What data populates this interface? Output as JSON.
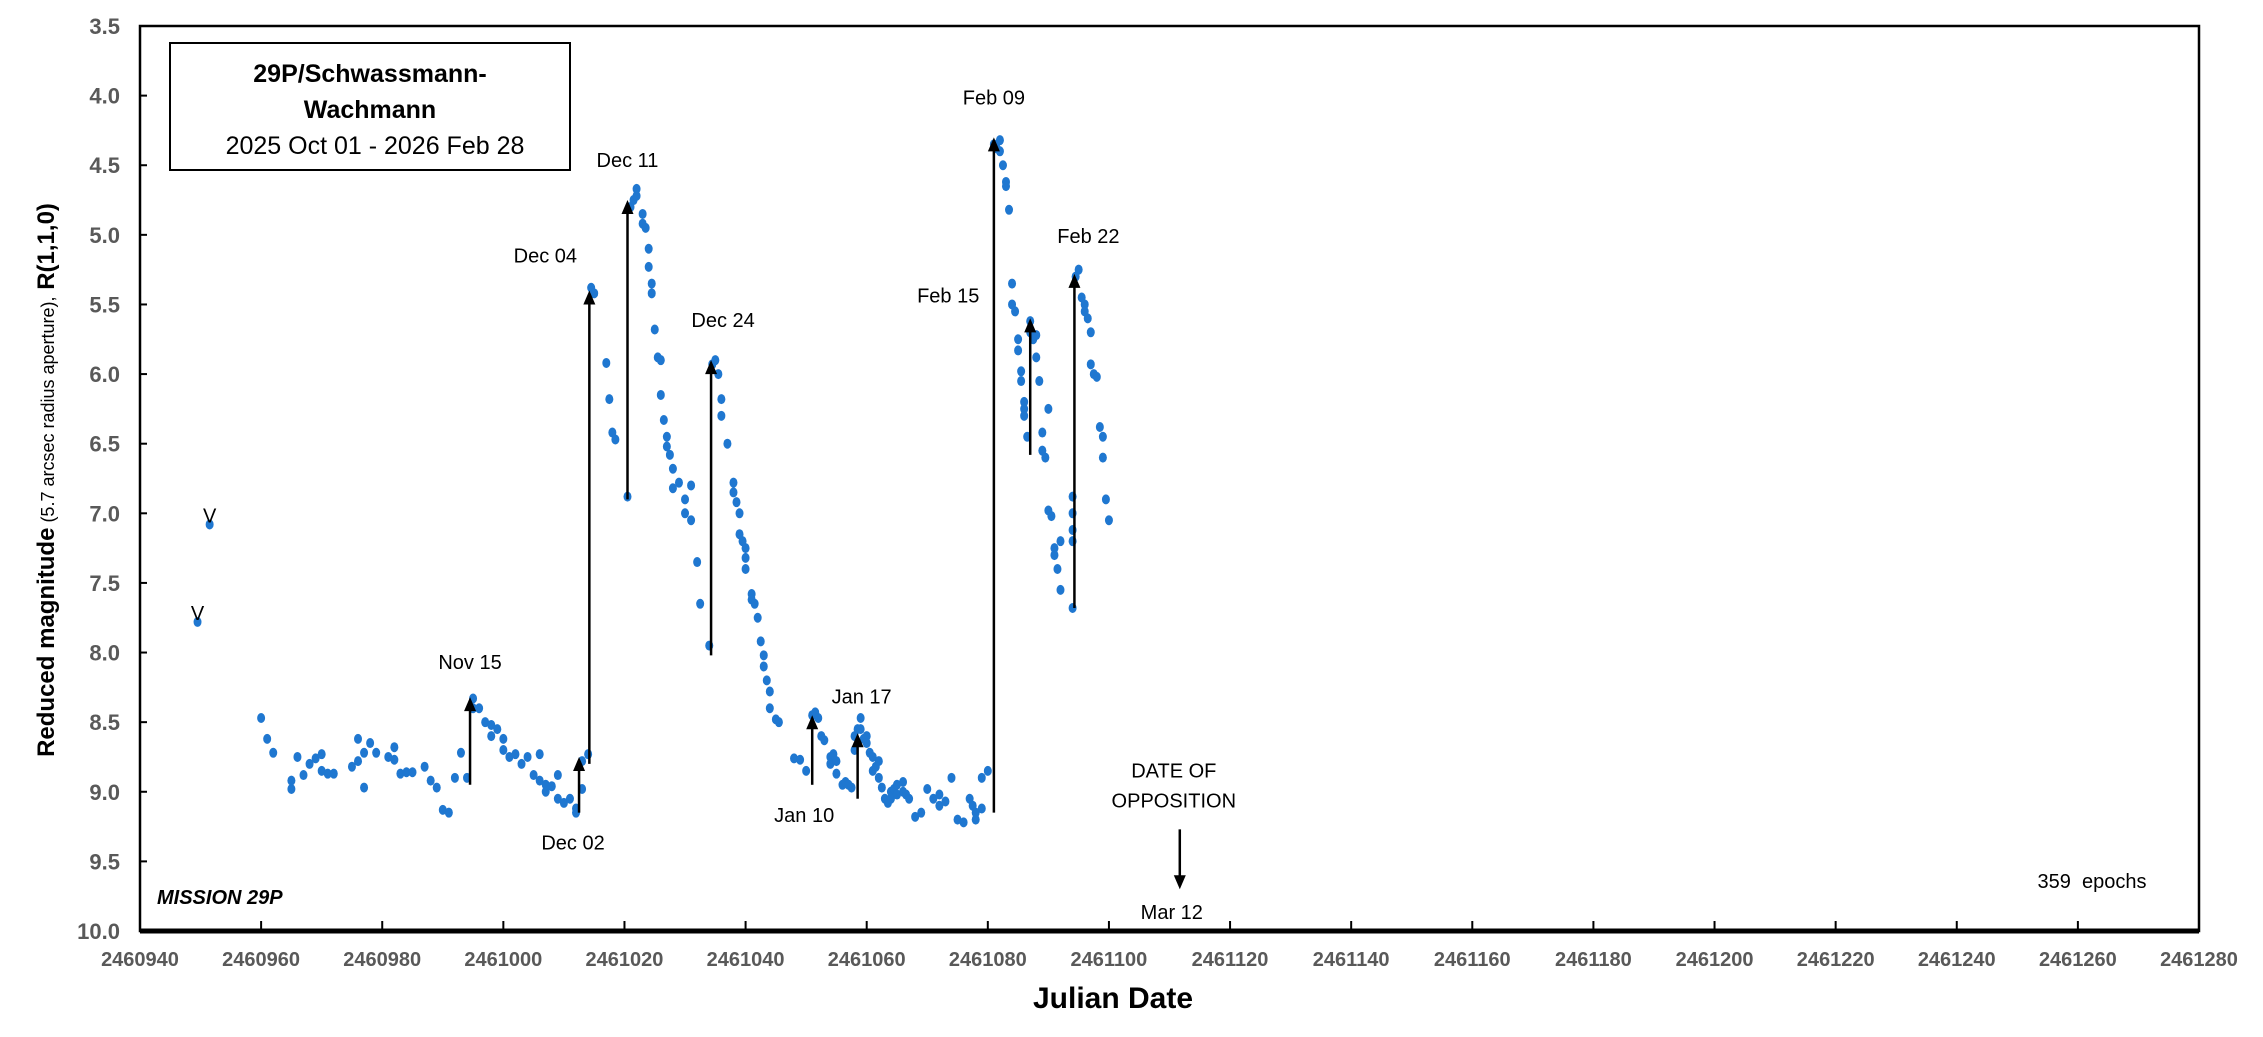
{
  "chart_data": {
    "type": "scatter",
    "title_line1": "29P/Schwassmann-",
    "title_line2": "Wachmann",
    "subtitle": "2025 Oct 01 - 2026 Feb 28",
    "xlabel": "Julian Date",
    "ylabel_bold": "Reduced magnitude",
    "ylabel_small": " (5.7 arcsec radius aperture),",
    "ylabel_bold2": "  R(1,1,0)",
    "xlim": [
      2460940,
      2461280
    ],
    "ylim": [
      3.5,
      10.0
    ],
    "y_inverted": true,
    "xticks": [
      "2460940",
      "2460960",
      "2460980",
      "2461000",
      "2461020",
      "2461040",
      "2461060",
      "2461080",
      "2461100",
      "2461120",
      "2461140",
      "2461160",
      "2461180",
      "2461200",
      "2461220",
      "2461240",
      "2461260",
      "2461280"
    ],
    "yticks": [
      "3.5",
      "4.0",
      "4.5",
      "5.0",
      "5.5",
      "6.0",
      "6.5",
      "7.0",
      "7.5",
      "8.0",
      "8.5",
      "9.0",
      "9.5",
      "10.0"
    ],
    "point_color": "#1f77d0",
    "upper_limits": {
      "marker": "V",
      "points": [
        [
          2460949.5,
          7.78
        ],
        [
          2460951.5,
          7.08
        ]
      ]
    },
    "points": [
      [
        2460960,
        8.47
      ],
      [
        2460961,
        8.62
      ],
      [
        2460962,
        8.72
      ],
      [
        2460965,
        8.98
      ],
      [
        2460965,
        8.92
      ],
      [
        2460966,
        8.75
      ],
      [
        2460967,
        8.88
      ],
      [
        2460968,
        8.8
      ],
      [
        2460969,
        8.76
      ],
      [
        2460970,
        8.73
      ],
      [
        2460970,
        8.85
      ],
      [
        2460971,
        8.87
      ],
      [
        2460972,
        8.87
      ],
      [
        2460975,
        8.82
      ],
      [
        2460976,
        8.78
      ],
      [
        2460976,
        8.62
      ],
      [
        2460977,
        8.97
      ],
      [
        2460977,
        8.72
      ],
      [
        2460978,
        8.65
      ],
      [
        2460979,
        8.72
      ],
      [
        2460981,
        8.75
      ],
      [
        2460982,
        8.77
      ],
      [
        2460982,
        8.68
      ],
      [
        2460983,
        8.87
      ],
      [
        2460984,
        8.86
      ],
      [
        2460985,
        8.86
      ],
      [
        2460987,
        8.82
      ],
      [
        2460988,
        8.92
      ],
      [
        2460989,
        8.97
      ],
      [
        2460990,
        9.13
      ],
      [
        2460991,
        9.15
      ],
      [
        2460992,
        8.9
      ],
      [
        2460993,
        8.72
      ],
      [
        2460994,
        8.9
      ],
      [
        2460995,
        8.33
      ],
      [
        2460995,
        8.4
      ],
      [
        2460996,
        8.4
      ],
      [
        2460997,
        8.5
      ],
      [
        2460998,
        8.6
      ],
      [
        2460998,
        8.52
      ],
      [
        2460999,
        8.55
      ],
      [
        2461000,
        8.62
      ],
      [
        2461000,
        8.7
      ],
      [
        2461001,
        8.75
      ],
      [
        2461002,
        8.73
      ],
      [
        2461003,
        8.8
      ],
      [
        2461004,
        8.75
      ],
      [
        2461005,
        8.88
      ],
      [
        2461006,
        8.73
      ],
      [
        2461006,
        8.92
      ],
      [
        2461007,
        9.0
      ],
      [
        2461007,
        8.95
      ],
      [
        2461008,
        8.96
      ],
      [
        2461009,
        9.05
      ],
      [
        2461009,
        8.88
      ],
      [
        2461010,
        9.08
      ],
      [
        2461011,
        9.05
      ],
      [
        2461012,
        9.12
      ],
      [
        2461012,
        9.15
      ],
      [
        2461013,
        8.98
      ],
      [
        2461013,
        8.78
      ],
      [
        2461014,
        8.73
      ],
      [
        2461014.5,
        5.38
      ],
      [
        2461015,
        5.42
      ],
      [
        2461017,
        5.92
      ],
      [
        2461017.5,
        6.18
      ],
      [
        2461018,
        6.42
      ],
      [
        2461018.5,
        6.47
      ],
      [
        2461020.5,
        6.88
      ],
      [
        2461021,
        4.8
      ],
      [
        2461021.5,
        4.75
      ],
      [
        2461022,
        4.67
      ],
      [
        2461022,
        4.72
      ],
      [
        2461023,
        4.85
      ],
      [
        2461023,
        4.92
      ],
      [
        2461023.5,
        4.95
      ],
      [
        2461024,
        5.1
      ],
      [
        2461024,
        5.23
      ],
      [
        2461024.5,
        5.35
      ],
      [
        2461024.5,
        5.42
      ],
      [
        2461025,
        5.68
      ],
      [
        2461025.5,
        5.88
      ],
      [
        2461026,
        5.9
      ],
      [
        2461026,
        6.15
      ],
      [
        2461026.5,
        6.33
      ],
      [
        2461027,
        6.45
      ],
      [
        2461027,
        6.52
      ],
      [
        2461027.5,
        6.58
      ],
      [
        2461028,
        6.68
      ],
      [
        2461028,
        6.82
      ],
      [
        2461029,
        6.78
      ],
      [
        2461030,
        6.9
      ],
      [
        2461030,
        7.0
      ],
      [
        2461031,
        7.05
      ],
      [
        2461031,
        6.8
      ],
      [
        2461032,
        7.35
      ],
      [
        2461032.5,
        7.65
      ],
      [
        2461034,
        7.95
      ],
      [
        2461034.5,
        5.93
      ],
      [
        2461035,
        5.9
      ],
      [
        2461035.5,
        6.0
      ],
      [
        2461036,
        6.18
      ],
      [
        2461036,
        6.3
      ],
      [
        2461037,
        6.5
      ],
      [
        2461038,
        6.78
      ],
      [
        2461038,
        6.85
      ],
      [
        2461038.5,
        6.92
      ],
      [
        2461039,
        7.0
      ],
      [
        2461039,
        7.15
      ],
      [
        2461039.5,
        7.2
      ],
      [
        2461040,
        7.25
      ],
      [
        2461040,
        7.32
      ],
      [
        2461040,
        7.4
      ],
      [
        2461041,
        7.58
      ],
      [
        2461041,
        7.62
      ],
      [
        2461041.5,
        7.65
      ],
      [
        2461042,
        7.75
      ],
      [
        2461042.5,
        7.92
      ],
      [
        2461043,
        8.02
      ],
      [
        2461043,
        8.1
      ],
      [
        2461043.5,
        8.2
      ],
      [
        2461044,
        8.28
      ],
      [
        2461044,
        8.4
      ],
      [
        2461045,
        8.48
      ],
      [
        2461045.5,
        8.5
      ],
      [
        2461048,
        8.76
      ],
      [
        2461049,
        8.77
      ],
      [
        2461050,
        8.85
      ],
      [
        2461051,
        8.45
      ],
      [
        2461051.5,
        8.43
      ],
      [
        2461052,
        8.47
      ],
      [
        2461052.5,
        8.6
      ],
      [
        2461053,
        8.63
      ],
      [
        2461054,
        8.75
      ],
      [
        2461054,
        8.8
      ],
      [
        2461054.5,
        8.73
      ],
      [
        2461055,
        8.78
      ],
      [
        2461055,
        8.87
      ],
      [
        2461056,
        8.95
      ],
      [
        2461056.5,
        8.93
      ],
      [
        2461057,
        8.95
      ],
      [
        2461057.5,
        8.97
      ],
      [
        2461058,
        8.7
      ],
      [
        2461058,
        8.6
      ],
      [
        2461058.5,
        8.55
      ],
      [
        2461059,
        8.47
      ],
      [
        2461059,
        8.55
      ],
      [
        2461059.5,
        8.62
      ],
      [
        2461060,
        8.6
      ],
      [
        2461060,
        8.65
      ],
      [
        2461060.5,
        8.72
      ],
      [
        2461061,
        8.75
      ],
      [
        2461061,
        8.85
      ],
      [
        2461061.5,
        8.82
      ],
      [
        2461062,
        8.9
      ],
      [
        2461062,
        8.78
      ],
      [
        2461062.5,
        8.97
      ],
      [
        2461063,
        9.05
      ],
      [
        2461063.5,
        9.08
      ],
      [
        2461064,
        9.0
      ],
      [
        2461064,
        9.05
      ],
      [
        2461064.5,
        8.98
      ],
      [
        2461065,
        9.02
      ],
      [
        2461065,
        8.95
      ],
      [
        2461066,
        8.93
      ],
      [
        2461066,
        9.0
      ],
      [
        2461066.5,
        9.02
      ],
      [
        2461067,
        9.05
      ],
      [
        2461068,
        9.18
      ],
      [
        2461069,
        9.15
      ],
      [
        2461070,
        8.98
      ],
      [
        2461071,
        9.05
      ],
      [
        2461072,
        9.1
      ],
      [
        2461072,
        9.02
      ],
      [
        2461073,
        9.07
      ],
      [
        2461074,
        8.9
      ],
      [
        2461075,
        9.2
      ],
      [
        2461076,
        9.22
      ],
      [
        2461077,
        9.05
      ],
      [
        2461077.5,
        9.1
      ],
      [
        2461078,
        9.15
      ],
      [
        2461078,
        9.2
      ],
      [
        2461079,
        8.9
      ],
      [
        2461079,
        9.12
      ],
      [
        2461080,
        8.85
      ],
      [
        2461081,
        4.35
      ],
      [
        2461081.5,
        4.38
      ],
      [
        2461082,
        4.32
      ],
      [
        2461082,
        4.4
      ],
      [
        2461082.5,
        4.5
      ],
      [
        2461083,
        4.62
      ],
      [
        2461083,
        4.65
      ],
      [
        2461083.5,
        4.82
      ],
      [
        2461084,
        5.35
      ],
      [
        2461084,
        5.5
      ],
      [
        2461084.5,
        5.55
      ],
      [
        2461085,
        5.75
      ],
      [
        2461085,
        5.83
      ],
      [
        2461085.5,
        5.98
      ],
      [
        2461085.5,
        6.05
      ],
      [
        2461086,
        6.2
      ],
      [
        2461086,
        6.25
      ],
      [
        2461086,
        6.3
      ],
      [
        2461086.5,
        6.45
      ],
      [
        2461087,
        5.62
      ],
      [
        2461087,
        5.7
      ],
      [
        2461087.5,
        5.75
      ],
      [
        2461088,
        5.72
      ],
      [
        2461088,
        5.88
      ],
      [
        2461088.5,
        6.05
      ],
      [
        2461089,
        6.42
      ],
      [
        2461089,
        6.55
      ],
      [
        2461089.5,
        6.6
      ],
      [
        2461090,
        6.25
      ],
      [
        2461090,
        6.98
      ],
      [
        2461090.5,
        7.02
      ],
      [
        2461091,
        7.25
      ],
      [
        2461091,
        7.3
      ],
      [
        2461091.5,
        7.4
      ],
      [
        2461092,
        7.55
      ],
      [
        2461092,
        7.2
      ],
      [
        2461094,
        7.68
      ],
      [
        2461094,
        6.88
      ],
      [
        2461094,
        7.0
      ],
      [
        2461094,
        7.12
      ],
      [
        2461094,
        7.2
      ],
      [
        2461094.5,
        5.3
      ],
      [
        2461095,
        5.25
      ],
      [
        2461095.5,
        5.45
      ],
      [
        2461096,
        5.5
      ],
      [
        2461096,
        5.55
      ],
      [
        2461096.5,
        5.6
      ],
      [
        2461097,
        5.7
      ],
      [
        2461097,
        5.93
      ],
      [
        2461097.5,
        6.0
      ],
      [
        2461098,
        6.02
      ],
      [
        2461098.5,
        6.38
      ],
      [
        2461099,
        6.45
      ],
      [
        2461099,
        6.6
      ],
      [
        2461099.5,
        6.9
      ],
      [
        2461100,
        7.05
      ]
    ],
    "outbursts": [
      {
        "label": "Nov 15",
        "jd": 2460994.5,
        "from": 8.95,
        "to": 8.32
      },
      {
        "label": "Dec 02",
        "jd": 2461012.5,
        "from": 9.15,
        "to": 8.75
      },
      {
        "label": "Dec 04",
        "jd": 2461014.2,
        "from": 8.8,
        "to": 5.4
      },
      {
        "label": "Dec 11",
        "jd": 2461020.5,
        "from": 6.9,
        "to": 4.75
      },
      {
        "label": "Dec 24",
        "jd": 2461034.3,
        "from": 8.02,
        "to": 5.9
      },
      {
        "label": "Jan 10",
        "jd": 2461051,
        "from": 8.95,
        "to": 8.45
      },
      {
        "label": "Jan 17",
        "jd": 2461058.5,
        "from": 9.05,
        "to": 8.58
      },
      {
        "label": "Feb 09",
        "jd": 2461081,
        "from": 9.15,
        "to": 4.3
      },
      {
        "label": "Feb 15",
        "jd": 2461087,
        "from": 6.58,
        "to": 5.6
      },
      {
        "label": "Feb 22",
        "jd": 2461094.3,
        "from": 7.68,
        "to": 5.28
      }
    ],
    "opposition": {
      "line1": "DATE OF",
      "line2": "OPPOSITION",
      "date_label": "Mar 12",
      "jd": 2461111.7,
      "from": 9.27,
      "to": 9.7
    },
    "mission_label": "MISSION 29P",
    "epochs_label": "359  epochs"
  }
}
